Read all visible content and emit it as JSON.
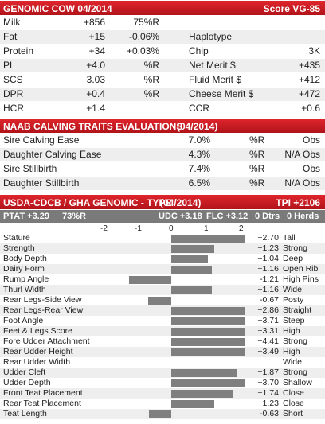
{
  "genomic": {
    "title": "GENOMIC COW 04/2014",
    "score": "Score VG-85",
    "left_rows": [
      {
        "label": "Milk",
        "value": "+856",
        "extra": "75%R"
      },
      {
        "label": "Fat",
        "value": "+15",
        "extra": "-0.06%"
      },
      {
        "label": "Protein",
        "value": "+34",
        "extra": "+0.03%"
      },
      {
        "label": "PL",
        "value": "+4.0",
        "extra": "%R"
      },
      {
        "label": "SCS",
        "value": "3.03",
        "extra": "%R"
      },
      {
        "label": "DPR",
        "value": "+0.4",
        "extra": "%R"
      },
      {
        "label": "HCR",
        "value": "+1.4",
        "extra": ""
      }
    ],
    "right_rows": [
      {
        "label": "",
        "value": ""
      },
      {
        "label": "Haplotype",
        "value": ""
      },
      {
        "label": "Chip",
        "value": "3K"
      },
      {
        "label": "Net Merit $",
        "value": "+435"
      },
      {
        "label": "Fluid Merit $",
        "value": "+412"
      },
      {
        "label": "Cheese Merit $",
        "value": "+472"
      },
      {
        "label": "CCR",
        "value": "+0.6"
      }
    ]
  },
  "naab": {
    "title": "NAAB CALVING TRAITS EVALUATIONS",
    "date": "(04/2014)",
    "rows": [
      {
        "label": "Sire Calving Ease",
        "value": "7.0%",
        "rel": "%R",
        "obs": "Obs"
      },
      {
        "label": "Daughter Calving Ease",
        "value": "4.3%",
        "rel": "%R",
        "obs": "N/A Obs"
      },
      {
        "label": "Sire Stillbirth",
        "value": "7.4%",
        "rel": "%R",
        "obs": "Obs"
      },
      {
        "label": "Daughter Stillbirth",
        "value": "6.5%",
        "rel": "%R",
        "obs": "N/A Obs"
      }
    ]
  },
  "type": {
    "title": "USDA-CDCB / GHA GENOMIC - TYPE",
    "date": "(04/2014)",
    "tpi": "TPI +2106",
    "ptat": "PTAT +3.29",
    "ptat_rel": "73%R",
    "udc": "UDC +3.18",
    "flc": "FLC +3.12",
    "dtrs": "0 Dtrs",
    "herds": "0 Herds",
    "axis_ticks": [
      "-2",
      "-1",
      "0",
      "1",
      "2"
    ],
    "axis_min": -2,
    "axis_max": 2
  },
  "chart_data": {
    "type": "bar",
    "categories": [
      "Stature",
      "Strength",
      "Body Depth",
      "Dairy Form",
      "Rump Angle",
      "Thurl Width",
      "Rear Legs-Side View",
      "Rear Legs-Rear View",
      "Foot Angle",
      "Feet & Legs Score",
      "Fore Udder Attachment",
      "Rear Udder Height",
      "Rear Udder Width",
      "Udder Cleft",
      "Udder Depth",
      "Front Teat Placement",
      "Rear Teat Placement",
      "Teat Length"
    ],
    "values": [
      2.7,
      1.23,
      1.04,
      1.16,
      -1.21,
      1.16,
      -0.67,
      2.86,
      3.71,
      3.31,
      4.41,
      3.49,
      null,
      1.87,
      3.7,
      1.74,
      1.23,
      -0.63
    ],
    "value_labels": [
      "+2.70",
      "+1.23",
      "+1.04",
      "+1.16",
      "-1.21",
      "+1.16",
      "-0.67",
      "+2.86",
      "+3.71",
      "+3.31",
      "+4.41",
      "+3.49",
      "",
      "+1.87",
      "+3.70",
      "+1.74",
      "+1.23",
      "-0.63"
    ],
    "descriptors": [
      "Tall",
      "Strong",
      "Deep",
      "Open Rib",
      "High Pins",
      "Wide",
      "Posty",
      "Straight",
      "Steep",
      "High",
      "Strong",
      "High",
      "Wide",
      "Strong",
      "Shallow",
      "Close",
      "Close",
      "Short"
    ],
    "xlim": [
      -2,
      2
    ]
  },
  "colors": {
    "header_red": "#c8161d",
    "subheader_gray": "#7a7a7a",
    "bar_gray": "#7f7f7f"
  }
}
